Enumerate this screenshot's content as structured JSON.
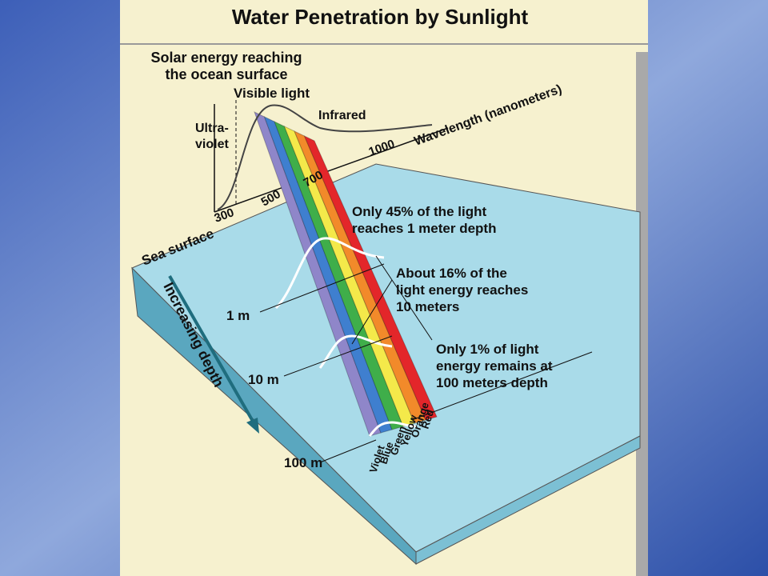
{
  "title": "Water Penetration by Sunlight",
  "spectrum": {
    "heading": [
      "Solar energy reaching",
      "the ocean surface"
    ],
    "visible": "Visible light",
    "infrared": "Infrared",
    "ultraviolet": [
      "Ultra-",
      "violet"
    ],
    "axis_label": "Wavelength (nanometers)",
    "ticks": [
      "300",
      "500",
      "700",
      "1000"
    ]
  },
  "sea_surface": "Sea surface",
  "depth_arrow": "Increasing depth",
  "depths": [
    "1 m",
    "10 m",
    "100 m"
  ],
  "notes": [
    [
      "Only 45% of the light",
      "reaches 1 meter depth"
    ],
    [
      "About 16% of the",
      "light energy reaches",
      "10 meters"
    ],
    [
      "Only 1% of light",
      "energy remains at",
      "100 meters depth"
    ]
  ],
  "colors": [
    "Violet",
    "Blue",
    "Green",
    "Yellow",
    "Orange",
    "Red"
  ]
}
